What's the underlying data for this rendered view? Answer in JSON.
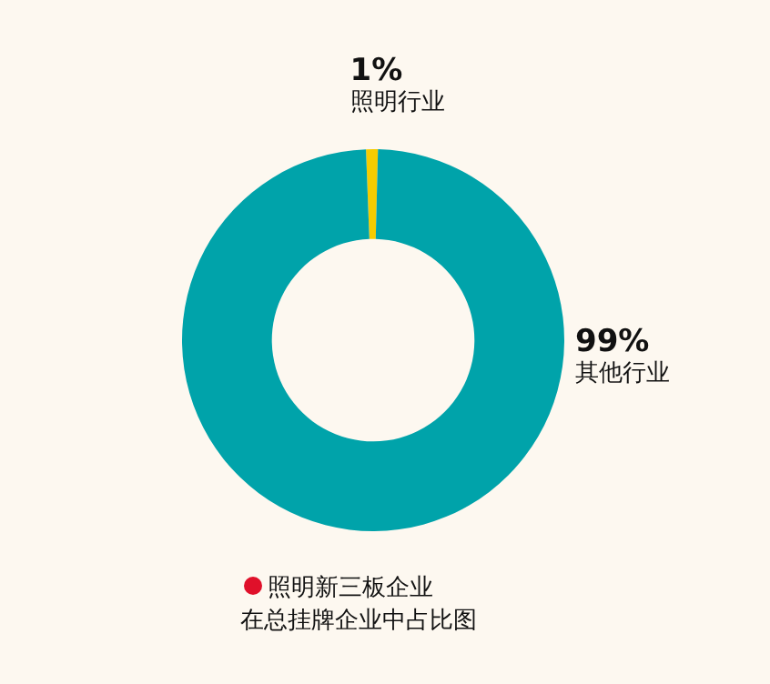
{
  "chart_data": {
    "type": "donut",
    "title": "照明新三板企业",
    "subtitle": "在总挂牌企业中占比图",
    "categories": [
      "照明行业",
      "其他行业"
    ],
    "values": [
      1,
      99
    ],
    "value_labels": [
      "1%",
      "99%"
    ],
    "colors": [
      "#f5cc00",
      "#00a3aa"
    ]
  }
}
